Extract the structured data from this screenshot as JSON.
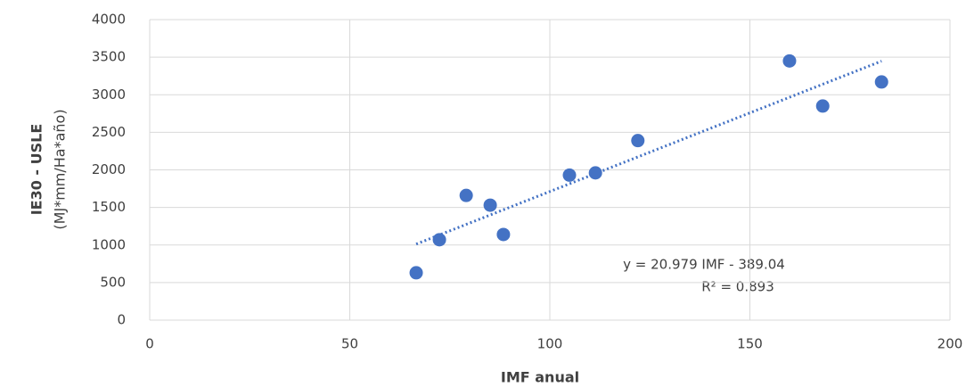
{
  "chart_data": {
    "type": "scatter",
    "x_label": "IMF anual",
    "y_label": [
      "IE30  -  USLE",
      "(MJ*mm/Ha*año)"
    ],
    "series": [
      {
        "color": "#4472c4",
        "x": [
          66.6,
          72.4,
          79.1,
          85.1,
          88.4,
          104.9,
          111.4,
          122.0,
          159.9,
          168.2,
          182.9
        ],
        "values": [
          630,
          1070,
          1660,
          1530,
          1140,
          1930,
          1960,
          2390,
          3450,
          2850,
          3170
        ]
      }
    ],
    "trendline": {
      "type": "linear",
      "style": "dotted",
      "equation": "y = 20.979 IMF -  389.04",
      "r2": "R² = 0.893"
    },
    "xlim": [
      0,
      200
    ],
    "xticks": [
      0,
      50,
      100,
      150,
      200
    ],
    "ylim": [
      0,
      4000
    ],
    "yticks": [
      0,
      500,
      1000,
      1500,
      2000,
      2500,
      3000,
      3500,
      4000
    ],
    "grid": true
  }
}
